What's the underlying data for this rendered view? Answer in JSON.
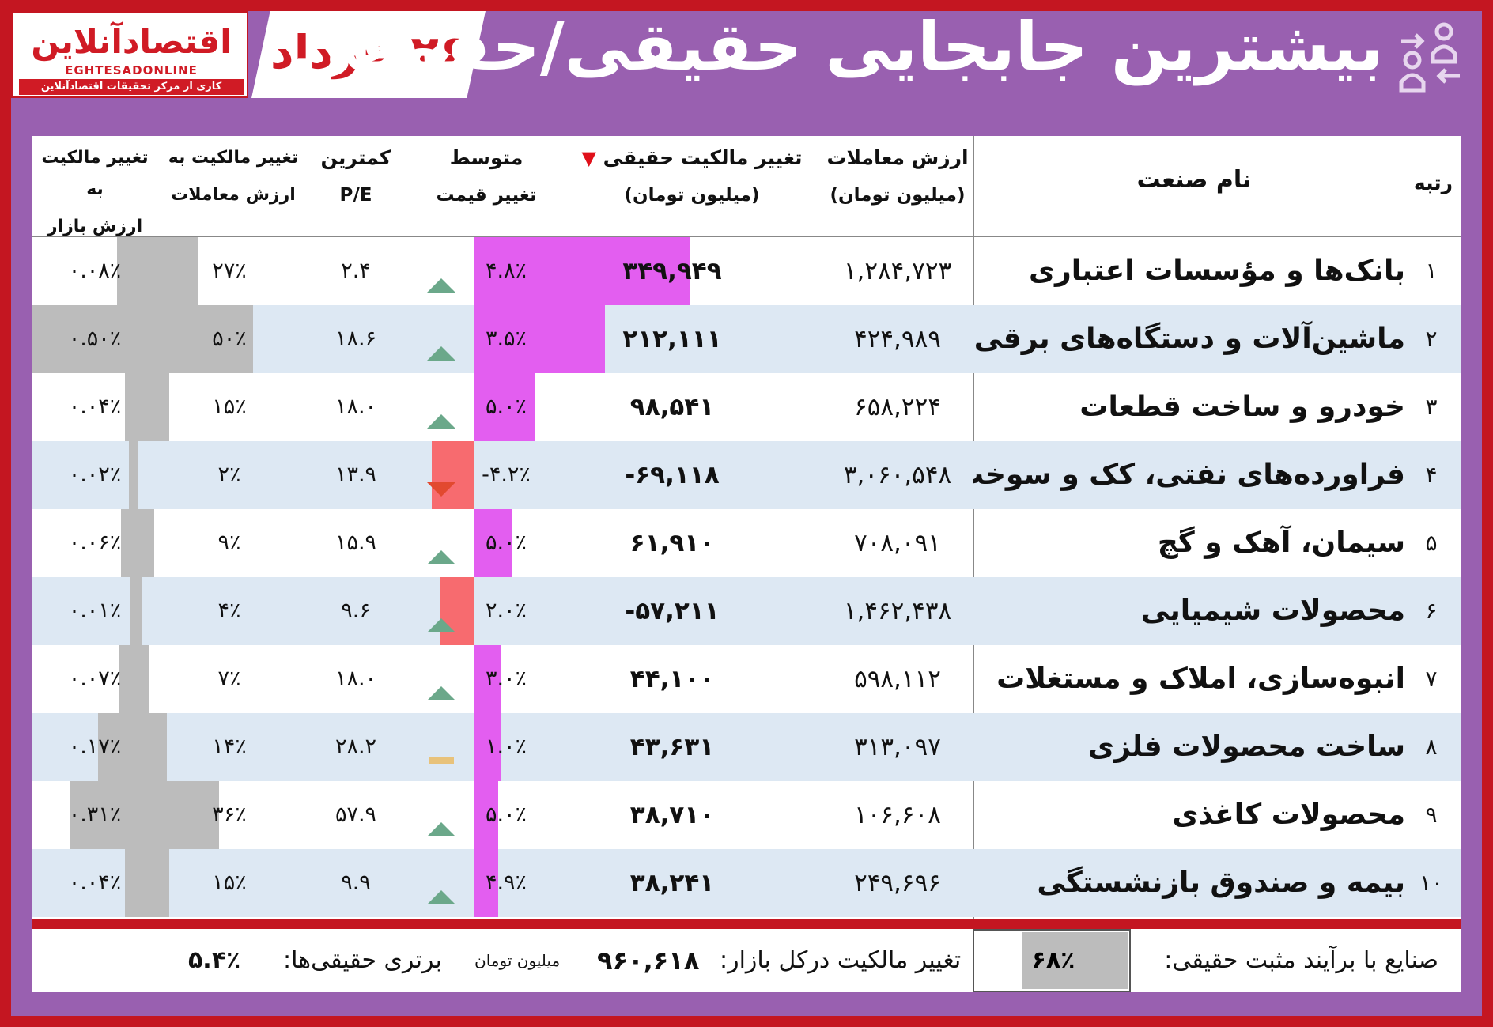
{
  "logo": {
    "name": "اقتصادآنلاین",
    "latin": "EGHTESADONLINE",
    "tagline": "کاری از مرکز تحقیقات اقتصادآنلاین"
  },
  "header": {
    "date": "۲۶ خرداد",
    "title": "بیشترین جابجایی حقیقی/حقوقی",
    "icon": "people-transfer-icon"
  },
  "columns": {
    "rank": "رتبه",
    "industry": "نام صنعت",
    "trade_value": [
      "ارزش معاملات",
      "(میلیون تومان)"
    ],
    "real_change": [
      "تغییر مالکیت حقیقی",
      "(میلیون تومان)"
    ],
    "avg_change": [
      "متوسط",
      "تغییر قیمت"
    ],
    "pe": [
      "کمترین",
      "P/E"
    ],
    "change_trade": [
      "تغییر مالکیت به",
      "ارزش معاملات"
    ],
    "change_market": [
      "تغییر مالکیت به",
      "ارزش بازار"
    ]
  },
  "sort_marker_color": "#e0101a",
  "colors": {
    "positive_bar": "#e35ef0",
    "negative_bar": "#f76b6f",
    "gray_bar": "#bcbcbc",
    "up_arrow": "#6ba88a",
    "down_arrow": "#e2492f",
    "flat_marker": "#e8c27a"
  },
  "rows": [
    {
      "rank": "۱",
      "name": "بانک‌ها و مؤسسات اعتباری",
      "value": "۱,۲۸۴,۷۲۳",
      "real": "۳۴۹,۹۴۹",
      "real_num": 349949,
      "avg": "۴.۸٪",
      "trend": "up",
      "pe": "۲.۴",
      "ct": "۲۷٪",
      "ct_num": 27,
      "cm": "۰.۰۸٪",
      "cm_num": 0.08
    },
    {
      "rank": "۲",
      "name": "ماشین‌آلات و دستگاه‌های برقی",
      "value": "۴۲۴,۹۸۹",
      "real": "۲۱۲,۱۱۱",
      "real_num": 212111,
      "avg": "۳.۵٪",
      "trend": "up",
      "pe": "۱۸.۶",
      "ct": "۵۰٪",
      "ct_num": 50,
      "cm": "۰.۵۰٪",
      "cm_num": 0.5
    },
    {
      "rank": "۳",
      "name": "خودرو و ساخت قطعات",
      "value": "۶۵۸,۲۲۴",
      "real": "۹۸,۵۴۱",
      "real_num": 98541,
      "avg": "۵.۰٪",
      "trend": "up",
      "pe": "۱۸.۰",
      "ct": "۱۵٪",
      "ct_num": 15,
      "cm": "۰.۰۴٪",
      "cm_num": 0.04
    },
    {
      "rank": "۴",
      "name": "فراورده‌های نفتی، کک و سوخت هسته‌ای",
      "value": "۳,۰۶۰,۵۴۸",
      "real": "-۶۹,۱۱۸",
      "real_num": -69118,
      "avg": "-۴.۲٪",
      "trend": "down",
      "pe": "۱۳.۹",
      "ct": "۲٪",
      "ct_num": 2,
      "cm": "۰.۰۲٪",
      "cm_num": 0.02
    },
    {
      "rank": "۵",
      "name": "سیمان، آهک و گچ",
      "value": "۷۰۸,۰۹۱",
      "real": "۶۱,۹۱۰",
      "real_num": 61910,
      "avg": "۵.۰٪",
      "trend": "up",
      "pe": "۱۵.۹",
      "ct": "۹٪",
      "ct_num": 9,
      "cm": "۰.۰۶٪",
      "cm_num": 0.06
    },
    {
      "rank": "۶",
      "name": "محصولات شیمیایی",
      "value": "۱,۴۶۲,۴۳۸",
      "real": "-۵۷,۲۱۱",
      "real_num": -57211,
      "avg": "۲.۰٪",
      "trend": "up",
      "pe": "۹.۶",
      "ct": "۴٪",
      "ct_num": 4,
      "cm": "۰.۰۱٪",
      "cm_num": 0.01
    },
    {
      "rank": "۷",
      "name": "انبوه‌سازی، املاک و مستغلات",
      "value": "۵۹۸,۱۱۲",
      "real": "۴۴,۱۰۰",
      "real_num": 44100,
      "avg": "۳.۰٪",
      "trend": "up",
      "pe": "۱۸.۰",
      "ct": "۷٪",
      "ct_num": 7,
      "cm": "۰.۰۷٪",
      "cm_num": 0.07
    },
    {
      "rank": "۸",
      "name": "ساخت محصولات فلزی",
      "value": "۳۱۳,۰۹۷",
      "real": "۴۳,۶۳۱",
      "real_num": 43631,
      "avg": "۱.۰٪",
      "trend": "flat",
      "pe": "۲۸.۲",
      "ct": "۱۴٪",
      "ct_num": 14,
      "cm": "۰.۱۷٪",
      "cm_num": 0.17
    },
    {
      "rank": "۹",
      "name": "محصولات کاغذی",
      "value": "۱۰۶,۶۰۸",
      "real": "۳۸,۷۱۰",
      "real_num": 38710,
      "avg": "۵.۰٪",
      "trend": "up",
      "pe": "۵۷.۹",
      "ct": "۳۶٪",
      "ct_num": 36,
      "cm": "۰.۳۱٪",
      "cm_num": 0.31
    },
    {
      "rank": "۱۰",
      "name": "بیمه و صندوق بازنشستگی",
      "value": "۲۴۹,۶۹۶",
      "real": "۳۸,۲۴۱",
      "real_num": 38241,
      "avg": "۴.۹٪",
      "trend": "up",
      "pe": "۹.۹",
      "ct": "۱۵٪",
      "ct_num": 15,
      "cm": "۰.۰۴٪",
      "cm_num": 0.04
    }
  ],
  "footer": {
    "positive_label": "صنایع با برآیند مثبت حقیقی:",
    "positive_value": "۶۸٪",
    "positive_num": 68,
    "market_change_label": "تغییر مالکیت درکل بازار:",
    "market_change_value": "۹۶۰,۶۱۸",
    "unit": "میلیون تومان",
    "advantage_label": "برتری حقیقی‌ها:",
    "advantage_value": "۵.۴٪"
  }
}
